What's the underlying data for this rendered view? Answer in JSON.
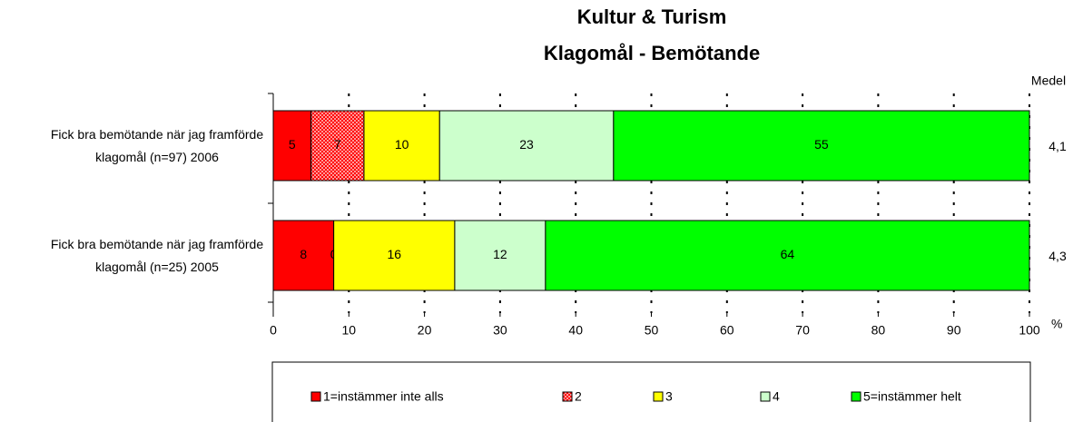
{
  "chart_data": {
    "type": "stacked_barh",
    "title": [
      "Kultur & Turism",
      "Klagomål - Bemötande"
    ],
    "categories": [
      "Fick bra bemötande när jag framförde klagomål (n=97) 2006",
      "Fick bra bemötande när jag framförde klagomål (n=25) 2005"
    ],
    "series": [
      {
        "name": "1=instämmer inte alls",
        "color": "#ff0000",
        "values": [
          5,
          8
        ]
      },
      {
        "name": "2",
        "color": "#ff9999",
        "pattern": "checker",
        "values": [
          7,
          0
        ]
      },
      {
        "name": "3",
        "color": "#ffff00",
        "values": [
          10,
          16
        ]
      },
      {
        "name": "4",
        "color": "#ccffcc",
        "values": [
          23,
          12
        ]
      },
      {
        "name": "5=instämmer helt",
        "color": "#00ff00",
        "values": [
          55,
          64
        ]
      }
    ],
    "medel": {
      "label": "Medel",
      "values": [
        "4,1",
        "4,3"
      ]
    },
    "xlabel": "%",
    "xlim": [
      0,
      100
    ],
    "xticks": [
      0,
      10,
      20,
      30,
      40,
      50,
      60,
      70,
      80,
      90,
      100
    ],
    "grid": true,
    "legend": "bottom"
  }
}
